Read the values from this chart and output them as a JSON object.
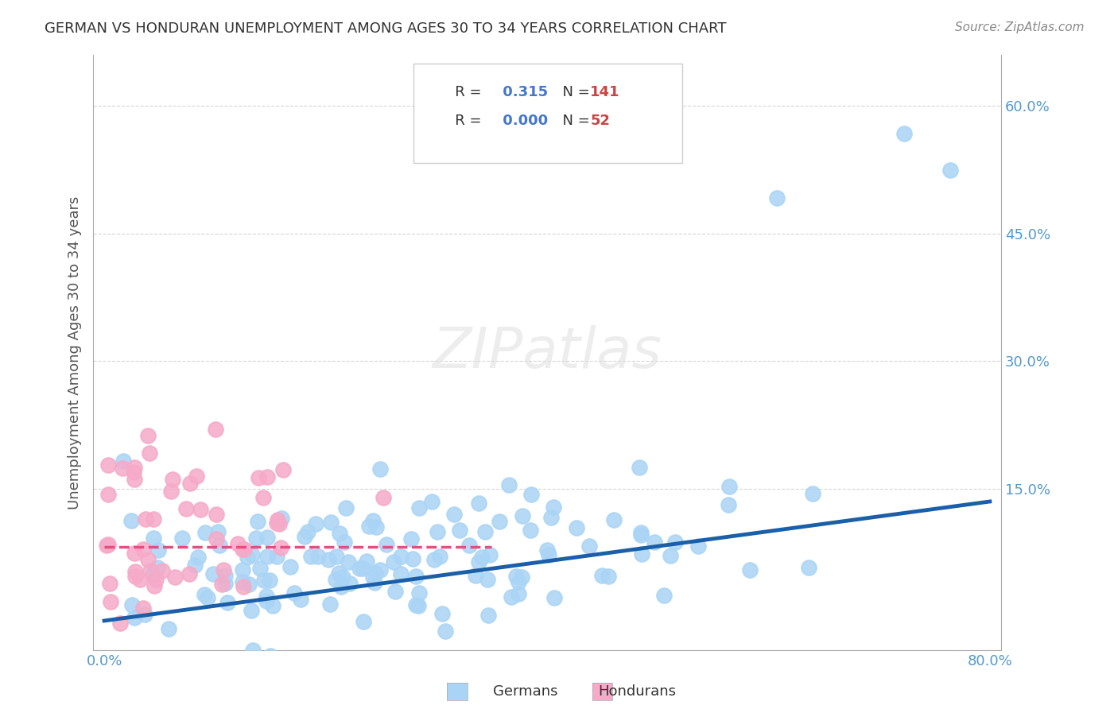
{
  "title": "GERMAN VS HONDURAN UNEMPLOYMENT AMONG AGES 30 TO 34 YEARS CORRELATION CHART",
  "source": "Source: ZipAtlas.com",
  "ylabel": "Unemployment Among Ages 30 to 34 years",
  "xlabel": "",
  "xlim": [
    0.0,
    0.8
  ],
  "ylim": [
    -0.02,
    0.65
  ],
  "xticks": [
    0.0,
    0.1,
    0.2,
    0.3,
    0.4,
    0.5,
    0.6,
    0.7,
    0.8
  ],
  "xticklabels": [
    "0.0%",
    "",
    "",
    "",
    "",
    "",
    "",
    "",
    "80.0%"
  ],
  "ytick_positions": [
    0.0,
    0.15,
    0.3,
    0.45,
    0.6
  ],
  "yticklabels": [
    "",
    "15.0%",
    "30.0%",
    "45.0%",
    "60.0%"
  ],
  "german_R": "0.315",
  "german_N": "141",
  "honduran_R": "0.000",
  "honduran_N": "52",
  "german_color": "#aad4f5",
  "honduran_color": "#f5aac8",
  "german_line_color": "#1a5fa8",
  "honduran_line_color": "#e05080",
  "honduran_line_style": "dashed",
  "watermark": "ZIPatlas",
  "background_color": "#ffffff",
  "grid_color": "#cccccc",
  "title_color": "#333333",
  "axis_label_color": "#555555",
  "tick_label_color": "#5599cc",
  "legend_R_color": "#4477cc",
  "legend_N_color": "#cc4444",
  "german_seed": 42,
  "honduran_seed": 7,
  "german_n": 141,
  "honduran_n": 52
}
